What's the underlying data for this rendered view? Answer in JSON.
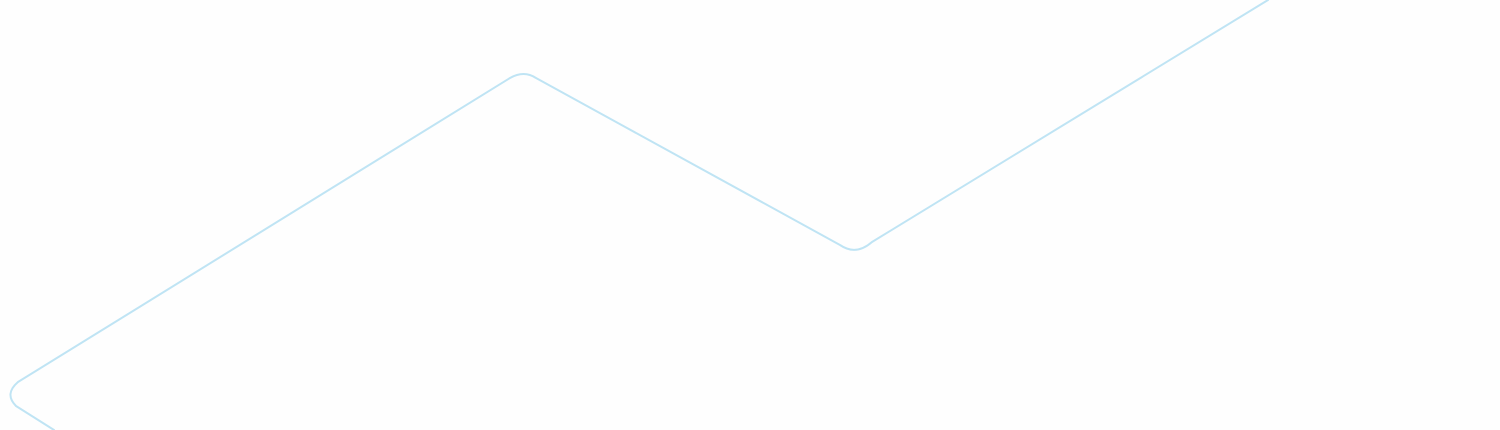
{
  "background": {
    "color": "#fefefe"
  },
  "decoration": {
    "kind": "zigzag-outline",
    "stroke_color": "#bfe4f4"
  }
}
